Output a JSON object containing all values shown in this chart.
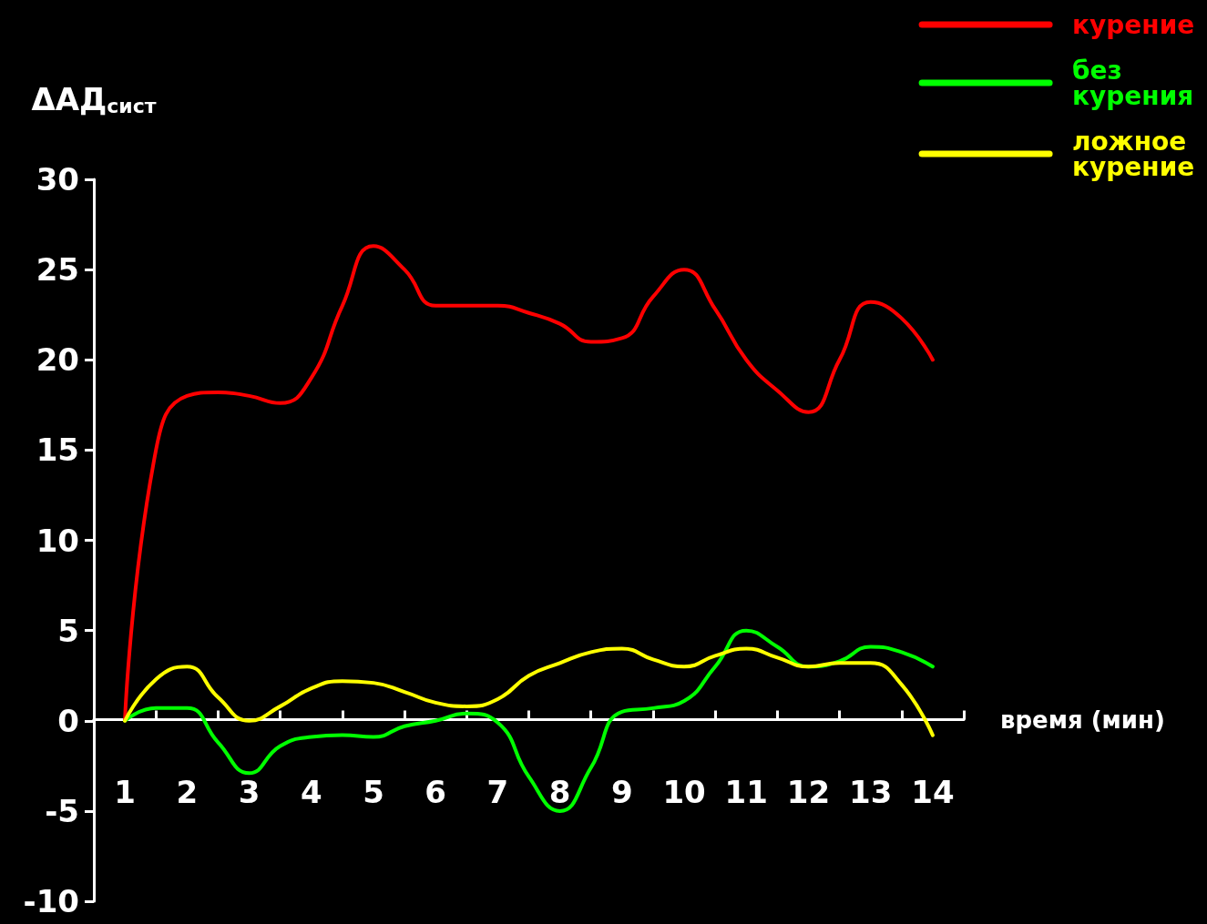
{
  "chart_data": {
    "type": "line",
    "ylabel": "ΔАД$_{сист}$",
    "xlabel": "время (мин)",
    "x": [
      1,
      1.5,
      2,
      2.5,
      3,
      3.5,
      4,
      4.5,
      5,
      5.5,
      6,
      6.5,
      7,
      7.5,
      8,
      8.5,
      9,
      9.5,
      10,
      10.5,
      11,
      11.5,
      12,
      12.5,
      13,
      13.5,
      14
    ],
    "series": [
      {
        "name": "курение",
        "color": "#ff0000",
        "values": [
          0,
          15,
          18,
          18.2,
          18,
          17.6,
          19,
          23,
          26.3,
          25,
          23,
          23,
          23,
          22.6,
          22,
          21,
          21.2,
          23.5,
          25,
          22.8,
          20,
          18.3,
          17.1,
          20,
          23.2,
          22.3,
          20
        ]
      },
      {
        "name": "без курения",
        "color": "#00ff00",
        "values": [
          0,
          0.7,
          0.7,
          -1.2,
          -2.9,
          -1.4,
          -0.9,
          -0.8,
          -0.9,
          -0.3,
          0,
          0.4,
          -0.1,
          -3.1,
          -5,
          -2.6,
          0.5,
          0.7,
          1.1,
          3,
          5,
          4.1,
          3,
          3.3,
          4.1,
          3.8,
          3
        ]
      },
      {
        "name": "ложное курение",
        "color": "#ffff00",
        "values": [
          0,
          2.3,
          3,
          1.3,
          0,
          0.8,
          1.8,
          2.2,
          2.1,
          1.6,
          1,
          0.8,
          1.2,
          2.5,
          3.2,
          3.8,
          4,
          3.4,
          3,
          3.6,
          4,
          3.5,
          3,
          3.2,
          3.2,
          2,
          -0.8
        ]
      }
    ],
    "xlim": [
      0.5,
      14.5
    ],
    "xticks": [
      {
        "value": 1,
        "label": "1"
      },
      {
        "value": 1.5,
        "label": null
      },
      {
        "value": 2,
        "label": "2"
      },
      {
        "value": 2.5,
        "label": null
      },
      {
        "value": 3,
        "label": "3"
      },
      {
        "value": 3.5,
        "label": null
      },
      {
        "value": 4,
        "label": "4"
      },
      {
        "value": 4.5,
        "label": null
      },
      {
        "value": 5,
        "label": "5"
      },
      {
        "value": 5.5,
        "label": null
      },
      {
        "value": 6,
        "label": "6"
      },
      {
        "value": 6.5,
        "label": null
      },
      {
        "value": 7,
        "label": "7"
      },
      {
        "value": 7.5,
        "label": null
      },
      {
        "value": 8,
        "label": "8"
      },
      {
        "value": 8.5,
        "label": null
      },
      {
        "value": 9,
        "label": "9"
      },
      {
        "value": 9.5,
        "label": null
      },
      {
        "value": 10,
        "label": "10"
      },
      {
        "value": 10.5,
        "label": null
      },
      {
        "value": 11,
        "label": "11"
      },
      {
        "value": 11.5,
        "label": null
      },
      {
        "value": 12,
        "label": "12"
      },
      {
        "value": 12.5,
        "label": null
      },
      {
        "value": 13,
        "label": "13"
      },
      {
        "value": 13.5,
        "label": null
      },
      {
        "value": 14,
        "label": "14"
      },
      {
        "value": 14.5,
        "label": null
      }
    ],
    "ylim": [
      -10,
      30
    ],
    "yticks": [
      -10,
      -5,
      0,
      5,
      10,
      15,
      20,
      25,
      30
    ],
    "legend": "top right",
    "marker": "none",
    "line_style": "solid"
  }
}
